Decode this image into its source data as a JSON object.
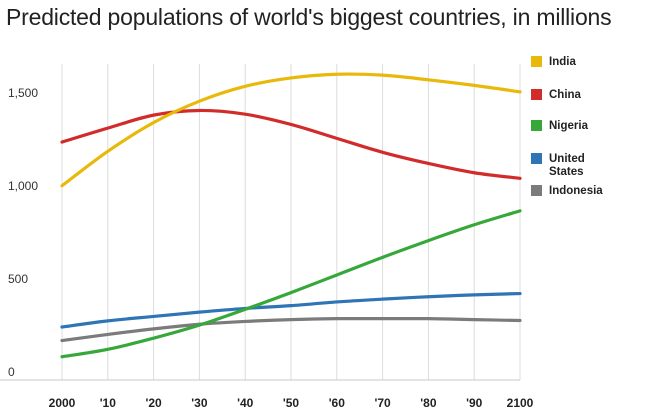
{
  "chart_data": {
    "type": "line",
    "title": "Predicted populations of world's biggest countries, in millions",
    "xlabel": "",
    "ylabel": "",
    "x": [
      2000,
      2010,
      2020,
      2030,
      2040,
      2050,
      2060,
      2070,
      2080,
      2090,
      2100
    ],
    "x_tick_labels": [
      "2000",
      "'10",
      "'20",
      "'30",
      "'40",
      "'50",
      "'60",
      "'70",
      "'80",
      "'90",
      "2100"
    ],
    "y_ticks": [
      0,
      500,
      1000,
      1500
    ],
    "y_tick_labels": [
      "0",
      "500",
      "1,000",
      "1,500"
    ],
    "xlim": [
      2000,
      2100
    ],
    "ylim": [
      0,
      1700
    ],
    "grid": "vertical",
    "legend": "right",
    "series": [
      {
        "name": "India",
        "color": "#e8b90b",
        "values": [
          1045,
          1230,
          1385,
          1500,
          1580,
          1625,
          1645,
          1640,
          1615,
          1585,
          1550
        ]
      },
      {
        "name": "China",
        "color": "#d12b2b",
        "values": [
          1280,
          1355,
          1425,
          1450,
          1430,
          1375,
          1300,
          1225,
          1165,
          1115,
          1085
        ]
      },
      {
        "name": "Nigeria",
        "color": "#36a83a",
        "values": [
          125,
          165,
          225,
          295,
          380,
          470,
          565,
          660,
          750,
          835,
          910
        ]
      },
      {
        "name": "United States",
        "color": "#2f74b5",
        "values": [
          285,
          318,
          342,
          365,
          385,
          400,
          420,
          435,
          448,
          458,
          465
        ]
      },
      {
        "name": "Indonesia",
        "color": "#7b7b7b",
        "values": [
          212,
          245,
          275,
          300,
          315,
          325,
          330,
          330,
          330,
          325,
          320
        ]
      }
    ]
  }
}
